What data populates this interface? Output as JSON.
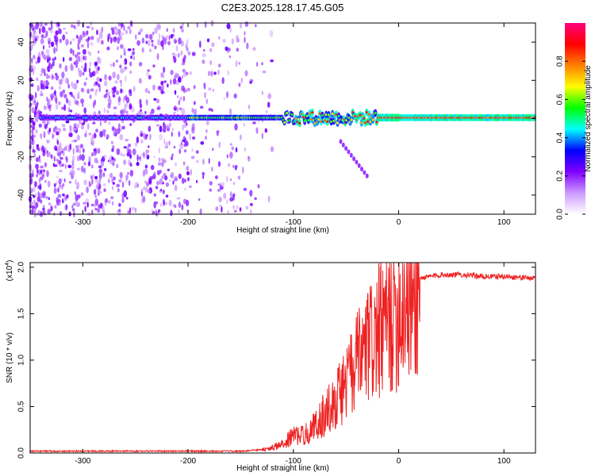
{
  "title": "C2E3.2025.128.17.45.G05",
  "chart_data": [
    {
      "type": "heatmap",
      "xlabel": "Height of straight line (km)",
      "ylabel": "Frequency (Hz)",
      "xlim": [
        -350,
        130
      ],
      "ylim": [
        -50,
        50
      ],
      "xticks": [
        -300,
        -200,
        -100,
        0,
        100
      ],
      "yticks": [
        -40,
        -20,
        0,
        20,
        40
      ],
      "colorbar": {
        "label": "Normalized spectral amplitude",
        "range": [
          0.0,
          1.0
        ],
        "ticks": [
          0.0,
          0.2,
          0.4,
          0.6,
          0.8
        ],
        "colors": [
          "#ffffff",
          "#cc99ff",
          "#8000ff",
          "#0000ff",
          "#00ffff",
          "#00ff00",
          "#ffff00",
          "#ff8000",
          "#ff0000",
          "#ff0080"
        ]
      },
      "features": [
        {
          "description_type": "carrier",
          "x_range": [
            -340,
            130
          ],
          "frequency": 0.5
        },
        {
          "description_type": "side_tail",
          "x_range": [
            -55,
            -30
          ],
          "frequency_range": [
            -12,
            -30
          ]
        }
      ]
    },
    {
      "type": "line",
      "xlabel": "Height of straight line (km)",
      "ylabel": "SNR (10 * v/v)",
      "scale_label": "(x10",
      "scale_exp": "4",
      "xlim": [
        -350,
        130
      ],
      "ylim": [
        0,
        2.05
      ],
      "xticks": [
        -300,
        -200,
        -100,
        0,
        100
      ],
      "yticks": [
        0.0,
        0.5,
        1.0,
        1.5,
        2.0
      ],
      "color": "#ee2222",
      "series": [
        {
          "x": [
            -350,
            -300,
            -250,
            -200,
            -150,
            -125,
            -110,
            -100,
            -90,
            -80,
            -70,
            -60,
            -50,
            -40,
            -30,
            -20,
            -10,
            0,
            10,
            20,
            30,
            40,
            60,
            80,
            100,
            130
          ],
          "y": [
            0.02,
            0.02,
            0.02,
            0.02,
            0.02,
            0.04,
            0.1,
            0.2,
            0.2,
            0.3,
            0.45,
            0.6,
            0.8,
            1.0,
            1.2,
            1.35,
            1.5,
            1.65,
            1.8,
            1.88,
            1.9,
            1.92,
            1.92,
            1.9,
            1.9,
            1.88
          ]
        }
      ]
    }
  ]
}
